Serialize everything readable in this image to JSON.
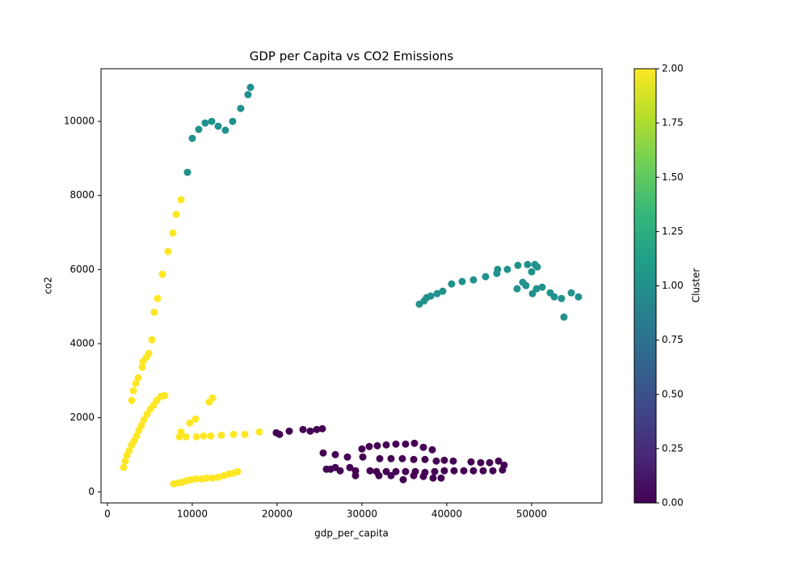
{
  "chart_data": {
    "type": "scatter",
    "title": "GDP per Capita vs CO2 Emissions",
    "x_label": "gdp_per_capita",
    "y_label": "co2",
    "xlim": [
      -760,
      58290
    ],
    "ylim": [
      -300,
      11420
    ],
    "xticks": [
      0,
      10000,
      20000,
      30000,
      40000,
      50000
    ],
    "yticks": [
      0,
      2000,
      4000,
      6000,
      8000,
      10000
    ],
    "series": [
      {
        "color": "#440154",
        "x": [
          19900,
          20290,
          21430,
          23050,
          23900,
          24670,
          25330,
          25430,
          25810,
          26290,
          26860,
          27430,
          28290,
          29240,
          30100,
          30950,
          29240,
          30000,
          30860,
          31810,
          32860,
          34000,
          35140,
          36190,
          37240,
          38290,
          32100,
          33430,
          34760,
          36100,
          37430,
          38760,
          39710,
          40760,
          31710,
          32860,
          34000,
          35140,
          36290,
          37430,
          38570,
          39710,
          40860,
          42000,
          43140,
          44290,
          45430,
          46570,
          32000,
          33430,
          34860,
          36100,
          37240,
          38380,
          39330,
          42860,
          44000,
          45050,
          46100,
          46760,
          26860,
          28570
        ],
        "values": [
          1594,
          1550,
          1638,
          1681,
          1638,
          1681,
          1703,
          1048,
          611,
          611,
          1004,
          568,
          939,
          568,
          939,
          568,
          437,
          1157,
          1223,
          1245,
          1266,
          1288,
          1288,
          1310,
          1201,
          1135,
          895,
          895,
          895,
          873,
          873,
          830,
          852,
          830,
          546,
          546,
          546,
          546,
          546,
          524,
          546,
          568,
          568,
          568,
          568,
          568,
          568,
          590,
          437,
          437,
          328,
          437,
          415,
          371,
          371,
          808,
          786,
          786,
          830,
          721,
          655,
          655
        ]
      },
      {
        "color": "#21918c",
        "x": [
          9430,
          10000,
          10760,
          11520,
          12290,
          13050,
          13900,
          14760,
          15710,
          16570,
          16860,
          36760,
          37330,
          37620,
          38100,
          38860,
          39520,
          40570,
          41810,
          43140,
          44570,
          45900,
          45990,
          47140,
          48380,
          49520,
          50380,
          50670,
          50000,
          48950,
          49330,
          48290,
          50100,
          50570,
          51240,
          52190,
          52670,
          53520,
          54670,
          55520,
          53810
        ],
        "values": [
          8624,
          9541,
          9782,
          9956,
          10000,
          9869,
          9760,
          10000,
          10349,
          10721,
          10917,
          5066,
          5153,
          5240,
          5284,
          5349,
          5415,
          5611,
          5677,
          5720,
          5808,
          5895,
          6004,
          6004,
          6113,
          6135,
          6135,
          6070,
          5939,
          5655,
          5568,
          5480,
          5349,
          5480,
          5524,
          5371,
          5262,
          5218,
          5371,
          5262,
          4716
        ]
      },
      {
        "color": "#fde725",
        "x": [
          8670,
          8100,
          7710,
          7140,
          6480,
          5900,
          5520,
          5240,
          4860,
          4570,
          4190,
          4100,
          3620,
          3330,
          3050,
          2860,
          1900,
          2100,
          2290,
          2570,
          2860,
          3140,
          3430,
          3710,
          4000,
          4290,
          4670,
          5050,
          5430,
          5810,
          6290,
          6760,
          8480,
          8670,
          9240,
          9710,
          10380,
          10480,
          11330,
          12190,
          12000,
          12380,
          13430,
          14860,
          16190,
          17900,
          7810,
          8380,
          8860,
          9430,
          9900,
          10480,
          11140,
          11710,
          12380,
          13050,
          13710,
          14290,
          14860,
          15330
        ],
        "values": [
          7882,
          7489,
          6987,
          6485,
          5873,
          5218,
          4847,
          4105,
          3734,
          3624,
          3515,
          3362,
          3079,
          2926,
          2729,
          2467,
          655,
          830,
          983,
          1114,
          1266,
          1376,
          1507,
          1659,
          1790,
          1943,
          2096,
          2227,
          2336,
          2467,
          2576,
          2598,
          1485,
          1616,
          1485,
          1856,
          1965,
          1485,
          1507,
          1507,
          2424,
          2533,
          1528,
          1550,
          1550,
          1616,
          218,
          240,
          262,
          306,
          328,
          349,
          349,
          371,
          371,
          393,
          437,
          480,
          502,
          546
        ]
      }
    ],
    "colorbar": {
      "label": "Cluster",
      "lim": [
        0,
        2
      ],
      "colors": [
        "#440154",
        "#482878",
        "#3e4989",
        "#31688e",
        "#26828e",
        "#1f9e89",
        "#35b779",
        "#6ece58",
        "#b5de2b",
        "#fde725"
      ],
      "ticks": [
        {
          "value": 0,
          "label": "0.00"
        },
        {
          "value": 0.25,
          "label": "0.25"
        },
        {
          "value": 0.5,
          "label": "0.50"
        },
        {
          "value": 0.75,
          "label": "0.75"
        },
        {
          "value": 1,
          "label": "1.00"
        },
        {
          "value": 1.25,
          "label": "1.25"
        },
        {
          "value": 1.5,
          "label": "1.50"
        },
        {
          "value": 1.75,
          "label": "1.75"
        },
        {
          "value": 2,
          "label": "2.00"
        }
      ]
    }
  }
}
